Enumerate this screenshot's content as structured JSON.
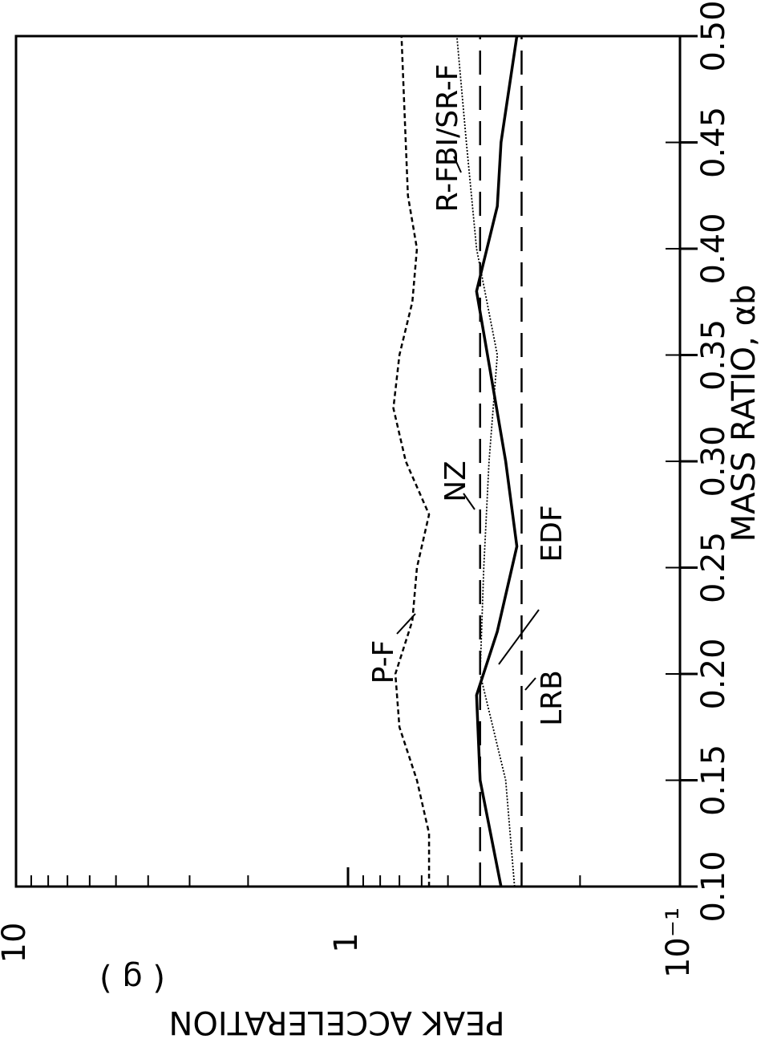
{
  "chart_data": {
    "type": "line",
    "x_label": "MASS RATIO, αb",
    "y_label": "PEAK ACCELERATION",
    "y_unit": "( g )",
    "log_y": true,
    "xlim": [
      0.1,
      0.5
    ],
    "xticks": [
      {
        "value": 0.1,
        "label": "0.10"
      },
      0.15,
      {
        "value": 0.2,
        "label": "0.20"
      },
      0.25,
      {
        "value": 0.3,
        "label": "0.30"
      },
      0.35,
      {
        "value": 0.4,
        "label": "0.40"
      },
      0.45,
      {
        "value": 0.5,
        "label": "0.50"
      }
    ],
    "ylim": [
      0.1,
      10
    ],
    "yticks": [
      {
        "value": 0.1,
        "label": "10⁻¹"
      },
      1,
      10
    ],
    "series": [
      {
        "name": "P-F",
        "color": "#000000",
        "style": "dotted",
        "x": [
          0.1,
          0.125,
          0.15,
          0.175,
          0.2,
          0.225,
          0.25,
          0.275,
          0.3,
          0.325,
          0.35,
          0.375,
          0.4,
          0.425,
          0.45,
          0.475,
          0.5
        ],
        "values": [
          0.57,
          0.57,
          0.62,
          0.7,
          0.72,
          0.64,
          0.62,
          0.57,
          0.67,
          0.73,
          0.7,
          0.64,
          0.62,
          0.66,
          0.67,
          0.68,
          0.69
        ]
      },
      {
        "name": "NZ",
        "color": "#000000",
        "style": "dashed",
        "x": [
          0.1,
          0.5
        ],
        "values": [
          0.4,
          0.4
        ]
      },
      {
        "name": "LRB",
        "color": "#000000",
        "style": "dashed",
        "x": [
          0.1,
          0.5
        ],
        "values": [
          0.3,
          0.3
        ]
      },
      {
        "name": "EDF",
        "color": "#000000",
        "style": "thin",
        "x": [
          0.1,
          0.15,
          0.2,
          0.25,
          0.3,
          0.35,
          0.4,
          0.45,
          0.5
        ],
        "values": [
          0.315,
          0.335,
          0.4,
          0.39,
          0.376,
          0.355,
          0.41,
          0.44,
          0.47
        ]
      },
      {
        "name": "R-FBI/SR-F",
        "color": "#000000",
        "style": "solid",
        "x": [
          0.1,
          0.15,
          0.19,
          0.22,
          0.26,
          0.3,
          0.35,
          0.38,
          0.42,
          0.45,
          0.5
        ],
        "values": [
          0.346,
          0.4,
          0.41,
          0.355,
          0.31,
          0.335,
          0.38,
          0.41,
          0.355,
          0.346,
          0.31
        ]
      }
    ]
  }
}
